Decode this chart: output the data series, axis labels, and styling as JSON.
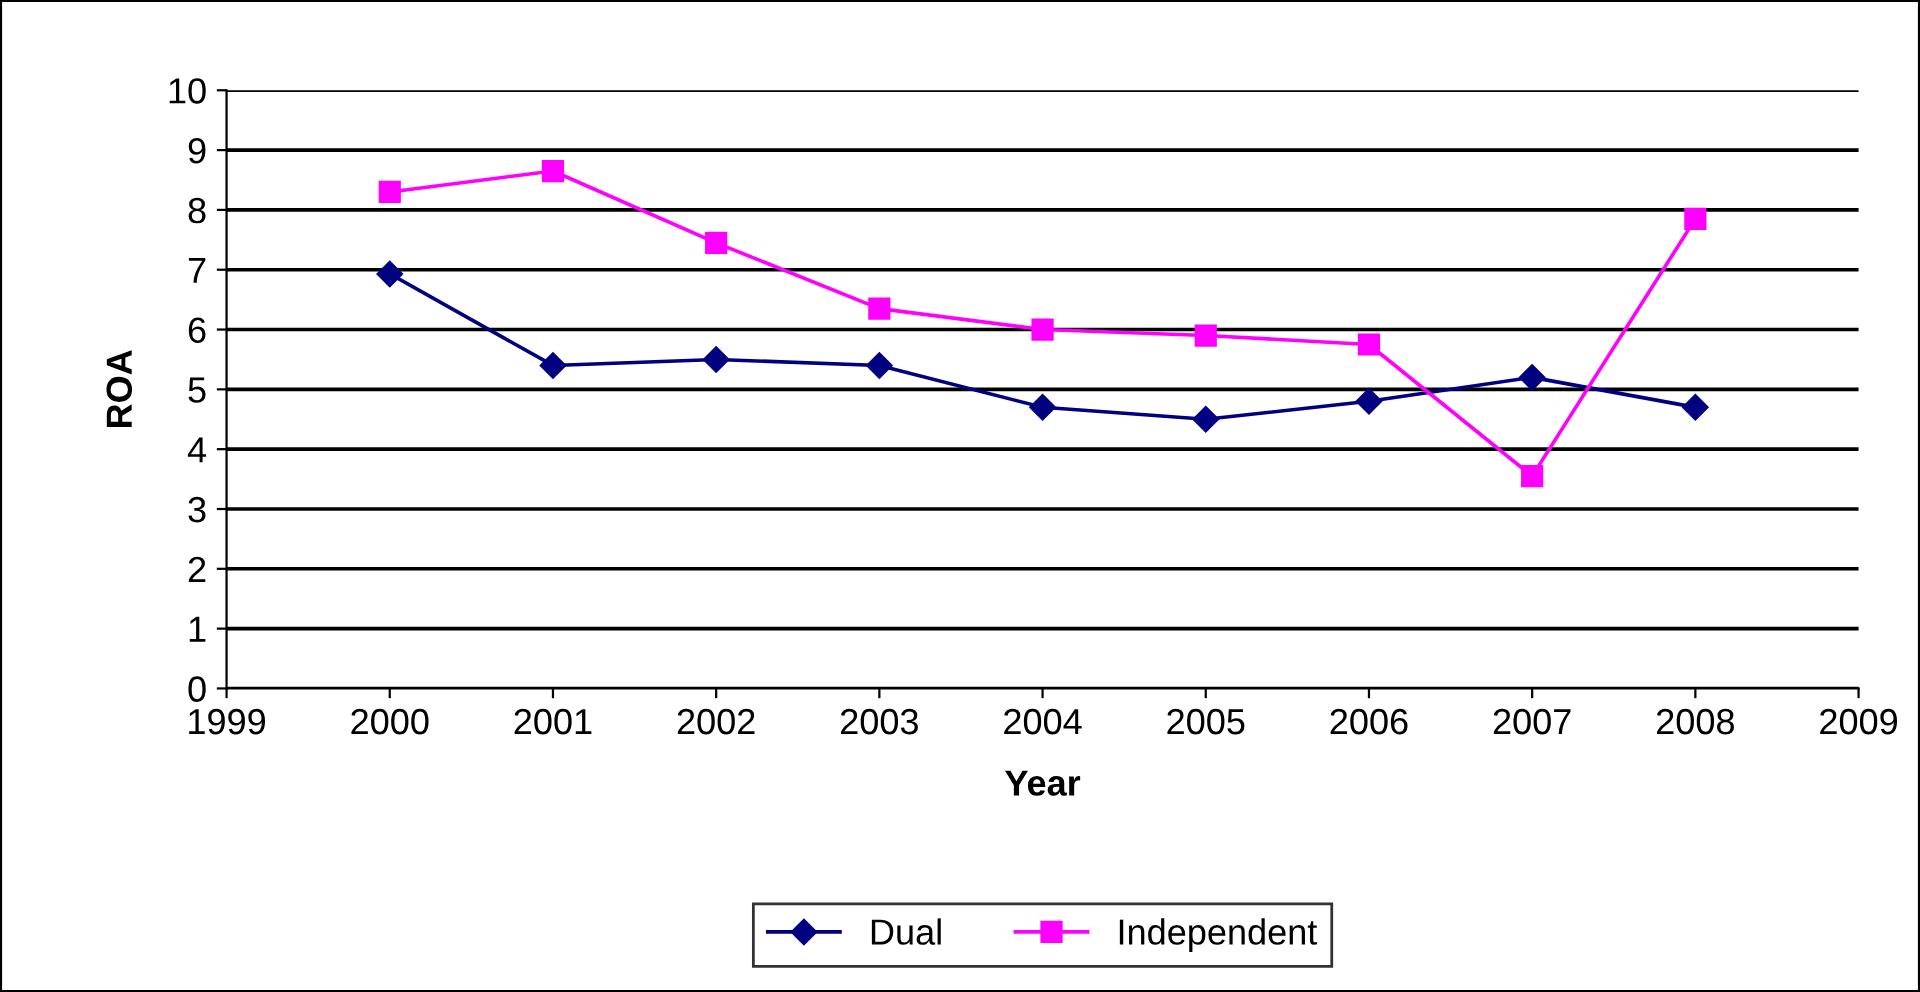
{
  "chart_data": {
    "type": "line",
    "xlabel": "Year",
    "ylabel": "ROA",
    "x": [
      2000,
      2001,
      2002,
      2003,
      2004,
      2005,
      2006,
      2007,
      2008
    ],
    "series": [
      {
        "name": "Dual",
        "color": "#000080",
        "marker": "diamond",
        "values": [
          6.93,
          5.4,
          5.5,
          5.4,
          4.7,
          4.5,
          4.8,
          5.2,
          4.7
        ]
      },
      {
        "name": "Independent",
        "color": "#ff00ff",
        "marker": "square",
        "values": [
          8.3,
          8.65,
          7.45,
          6.35,
          6.0,
          5.9,
          5.75,
          3.55,
          7.85
        ]
      }
    ],
    "xlim": [
      1999,
      2009
    ],
    "xticks": [
      1999,
      2000,
      2001,
      2002,
      2003,
      2004,
      2005,
      2006,
      2007,
      2008,
      2009
    ],
    "ylim": [
      0,
      10
    ],
    "yticks": [
      0,
      1,
      2,
      3,
      4,
      5,
      6,
      7,
      8,
      9,
      10
    ],
    "grid": "y",
    "legend": "bottom",
    "line_style": "solid"
  }
}
